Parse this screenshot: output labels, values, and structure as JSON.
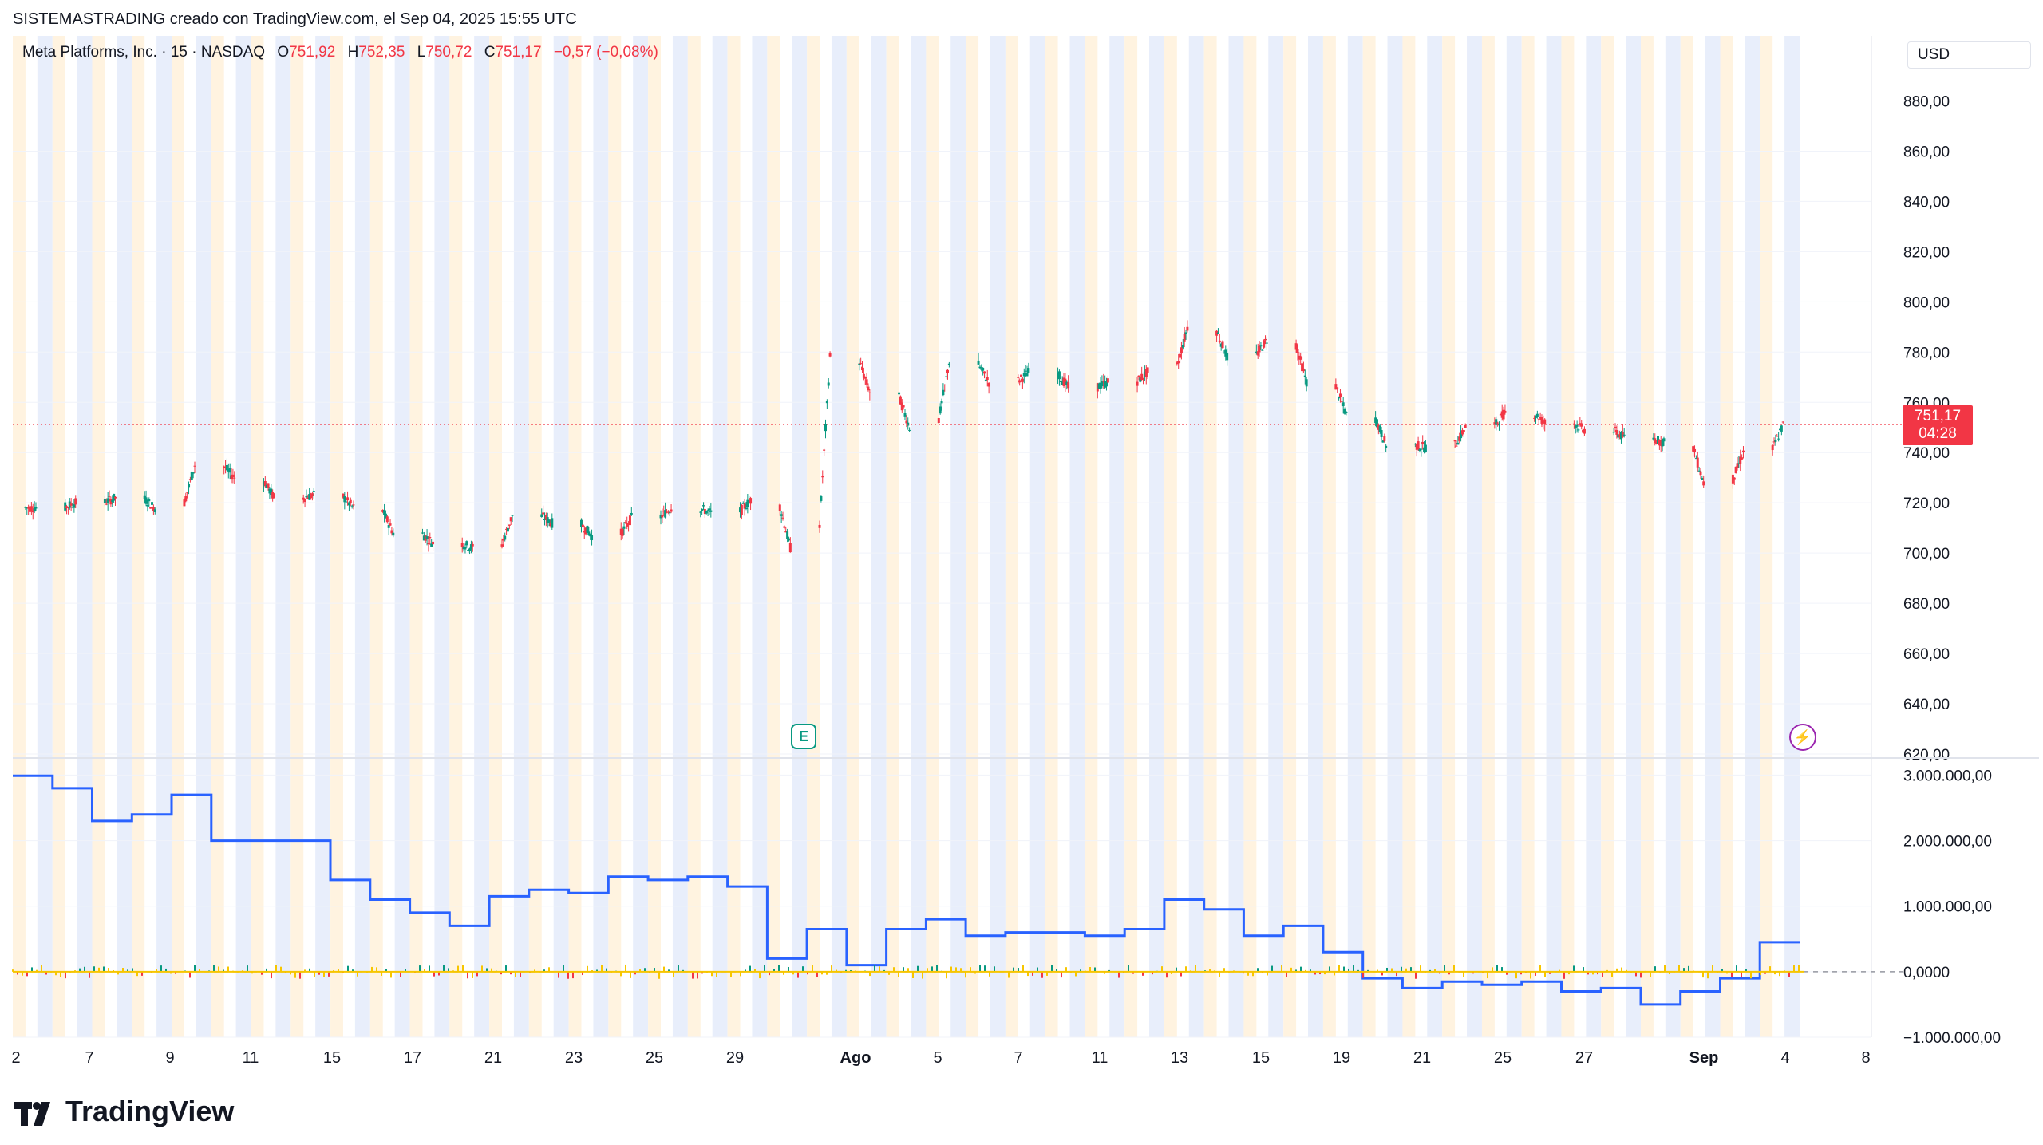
{
  "header": {
    "text": "SISTEMASTRADING creado con TradingView.com, el Sep 04, 2025 15:55 UTC"
  },
  "legend": {
    "symbol": "Meta Platforms, Inc. · 15 · NASDAQ",
    "o_label": "O",
    "o_value": "751,92",
    "h_label": "H",
    "h_value": "752,35",
    "l_label": "L",
    "l_value": "750,72",
    "c_label": "C",
    "c_value": "751,17",
    "change": "−0,57 (−0,08%)"
  },
  "currency": "USD",
  "price_tag": {
    "price": "751,17",
    "countdown": "04:28"
  },
  "brand": {
    "name": "TradingView"
  },
  "events": {
    "earnings": "E",
    "dividend": "⚡"
  },
  "colors": {
    "up": "#089981",
    "down": "#f23645",
    "indicator": "#2962ff",
    "oscillator": "#f7c600",
    "session_a": "#fff3e0",
    "session_b": "#e8eefb",
    "grid": "#f0f3fa"
  },
  "chart_data": [
    {
      "type": "line",
      "title": "Meta Platforms, Inc. · 15 · NASDAQ",
      "ylabel": "USD",
      "ylim": [
        620,
        890
      ],
      "yticks": [
        "880,00",
        "860,00",
        "840,00",
        "820,00",
        "800,00",
        "780,00",
        "760,00",
        "740,00",
        "720,00",
        "700,00",
        "680,00",
        "660,00",
        "640,00",
        "620,00"
      ],
      "ytick_values": [
        880,
        860,
        840,
        820,
        800,
        780,
        760,
        740,
        720,
        700,
        680,
        660,
        640,
        620
      ],
      "x_ticks": [
        "2",
        "7",
        "9",
        "11",
        "15",
        "17",
        "21",
        "23",
        "25",
        "29",
        "Ago",
        "5",
        "7",
        "11",
        "13",
        "15",
        "19",
        "21",
        "25",
        "27",
        "Sep",
        "4",
        "8"
      ],
      "series": [
        {
          "x": [
            "Jul 2",
            "Jul 3",
            "Jul 7",
            "Jul 8",
            "Jul 9",
            "Jul 10",
            "Jul 11",
            "Jul 14",
            "Jul 15",
            "Jul 16",
            "Jul 17",
            "Jul 18",
            "Jul 21",
            "Jul 22",
            "Jul 23",
            "Jul 24",
            "Jul 25",
            "Jul 28",
            "Jul 29",
            "Jul 30",
            "Jul 31",
            "Aug 1",
            "Aug 4",
            "Aug 5",
            "Aug 6",
            "Aug 7",
            "Aug 8",
            "Aug 11",
            "Aug 12",
            "Aug 13",
            "Aug 14",
            "Aug 15",
            "Aug 18",
            "Aug 19",
            "Aug 20",
            "Aug 21",
            "Aug 22",
            "Aug 25",
            "Aug 26",
            "Aug 27",
            "Aug 28",
            "Aug 29",
            "Sep 2",
            "Sep 3",
            "Sep 4"
          ],
          "values": [
            718,
            720,
            722,
            718,
            735,
            730,
            722,
            723,
            718,
            708,
            704,
            702,
            715,
            712,
            707,
            714,
            718,
            716,
            721,
            702,
            778,
            764,
            750,
            776,
            768,
            772,
            766,
            768,
            772,
            790,
            778,
            785,
            768,
            755,
            743,
            742,
            750,
            756,
            752,
            749,
            746,
            744,
            728,
            740,
            751
          ]
        }
      ],
      "last_price": 751.17
    },
    {
      "type": "line",
      "ylim": [
        -1000000,
        3200000
      ],
      "yticks": [
        "3.000.000,00",
        "2.000.000,00",
        "1.000.000,00",
        "0,0000",
        "−1.000.000,00"
      ],
      "ytick_values": [
        3000000,
        2000000,
        1000000,
        0,
        -1000000
      ],
      "series": [
        {
          "x": [
            "Jul 2",
            "Jul 3",
            "Jul 7",
            "Jul 8",
            "Jul 9",
            "Jul 10",
            "Jul 11",
            "Jul 14",
            "Jul 15",
            "Jul 16",
            "Jul 17",
            "Jul 18",
            "Jul 21",
            "Jul 22",
            "Jul 23",
            "Jul 24",
            "Jul 25",
            "Jul 28",
            "Jul 29",
            "Jul 30",
            "Jul 31",
            "Aug 1",
            "Aug 4",
            "Aug 5",
            "Aug 6",
            "Aug 7",
            "Aug 8",
            "Aug 11",
            "Aug 12",
            "Aug 13",
            "Aug 14",
            "Aug 15",
            "Aug 18",
            "Aug 19",
            "Aug 20",
            "Aug 21",
            "Aug 22",
            "Aug 25",
            "Aug 26",
            "Aug 27",
            "Aug 28",
            "Aug 29",
            "Sep 2",
            "Sep 3",
            "Sep 4"
          ],
          "values": [
            2990000,
            2800000,
            2300000,
            2400000,
            2700000,
            2000000,
            2000000,
            2000000,
            1400000,
            1100000,
            900000,
            700000,
            1150000,
            1250000,
            1200000,
            1450000,
            1400000,
            1450000,
            1300000,
            200000,
            650000,
            100000,
            650000,
            800000,
            550000,
            600000,
            600000,
            550000,
            650000,
            1100000,
            950000,
            550000,
            700000,
            300000,
            -100000,
            -250000,
            -150000,
            -200000,
            -150000,
            -300000,
            -250000,
            -500000,
            -300000,
            -100000,
            450000
          ]
        }
      ]
    }
  ]
}
